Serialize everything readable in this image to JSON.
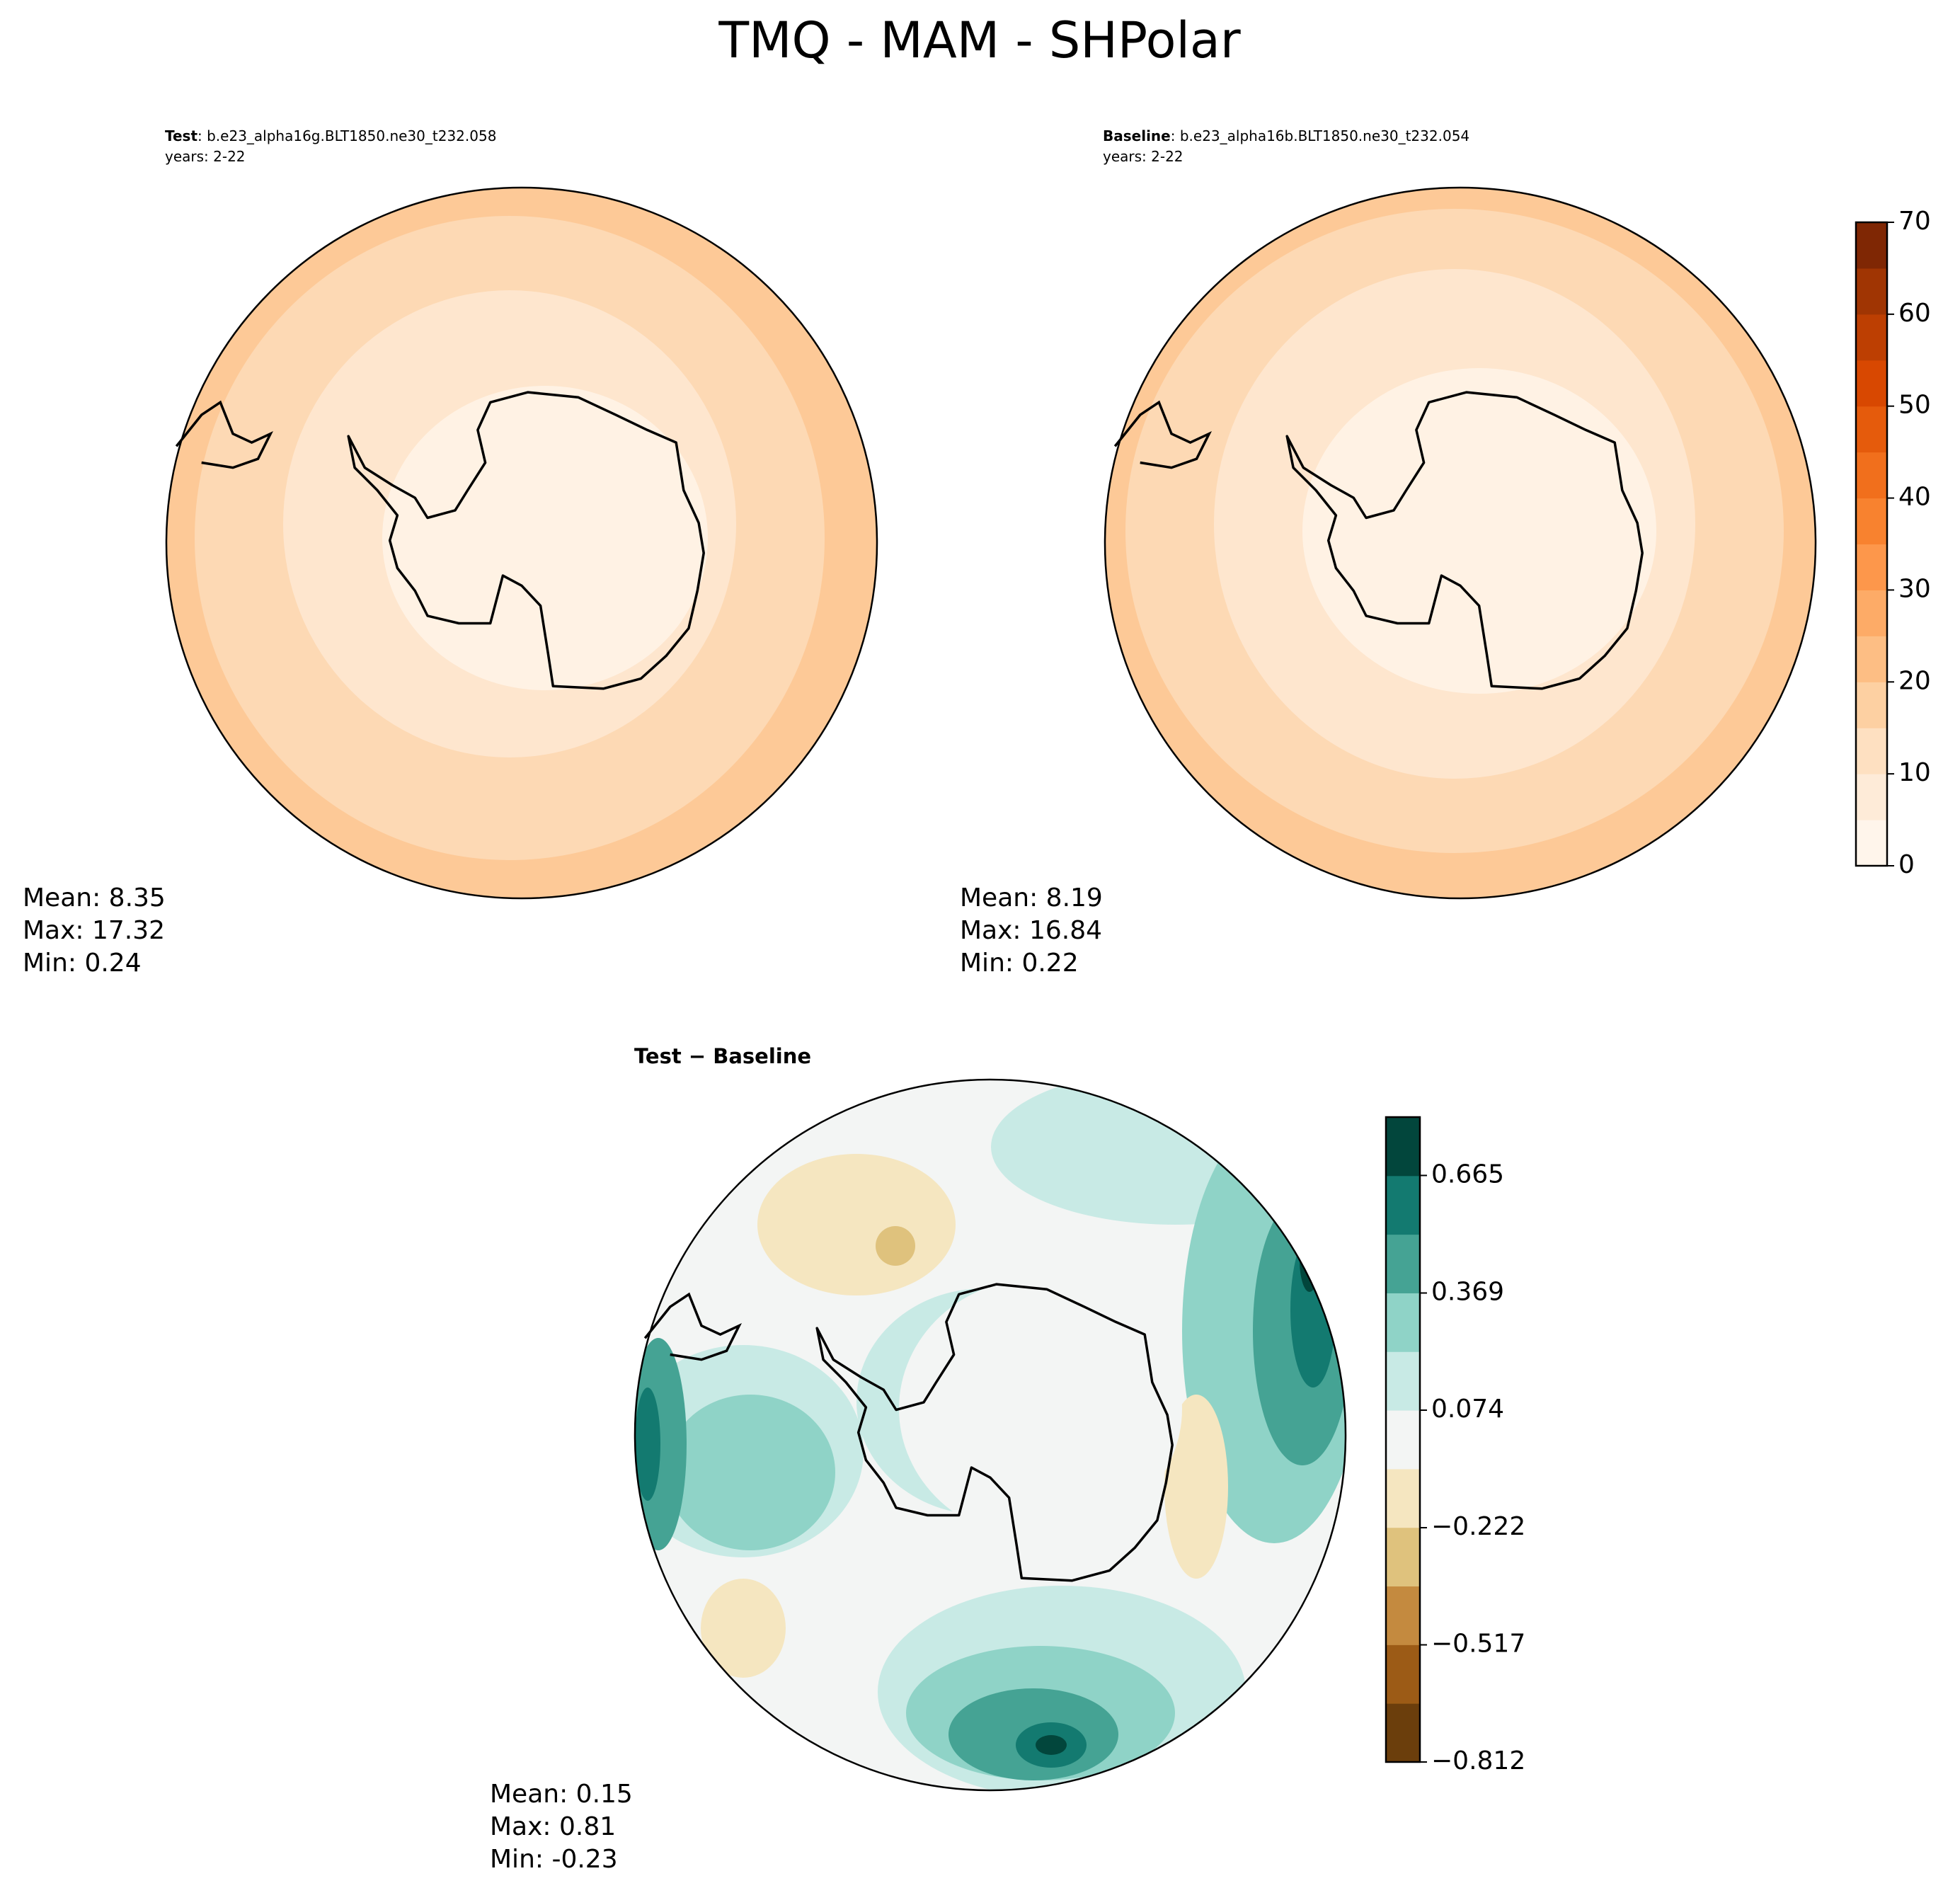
{
  "title": "TMQ - MAM - SHPolar",
  "panels": [
    {
      "name": "Test",
      "case": ": b.e23_alpha16g.BLT1850.ne30_t232.058",
      "years": "years: 2-22",
      "stats": [
        "Mean:  8.35",
        "Max: 17.32",
        "Min:  0.24"
      ]
    },
    {
      "name": "Baseline",
      "case": ": b.e23_alpha16b.BLT1850.ne30_t232.054",
      "years": "years: 2-22",
      "stats": [
        "Mean:  8.19",
        "Max: 16.84",
        "Min:  0.22"
      ]
    }
  ],
  "difference": {
    "title": "Test − Baseline",
    "stats": [
      "Mean:  0.15",
      "Max:  0.81",
      "Min: -0.23"
    ]
  },
  "colorbars": {
    "main": {
      "ylim": [
        0,
        70
      ],
      "yticks": [
        0,
        10,
        20,
        30,
        40,
        50,
        60,
        70
      ],
      "colors": [
        "#fff5eb",
        "#feebd8",
        "#fee0c1",
        "#fdd0a2",
        "#fdbe84",
        "#fdab67",
        "#fd974b",
        "#f8822f",
        "#f16f1c",
        "#e55b0c",
        "#d84801",
        "#bd3f02",
        "#a03503",
        "#7f2704"
      ]
    },
    "diff": {
      "ylim": [
        -0.812,
        0.812
      ],
      "yticks": [
        {
          "value": -0.812,
          "label": "−0.812"
        },
        {
          "value": -0.517,
          "label": "−0.517"
        },
        {
          "value": -0.222,
          "label": "−0.222"
        },
        0.074,
        0.369,
        0.665
      ],
      "colors": [
        "#6b3e0c",
        "#9c5b16",
        "#c48a3f",
        "#dfc27d",
        "#f5e6c0",
        "#f3f5f4",
        "#c8eae5",
        "#8fd3c7",
        "#45a394",
        "#137a70",
        "#02463c"
      ]
    }
  }
}
